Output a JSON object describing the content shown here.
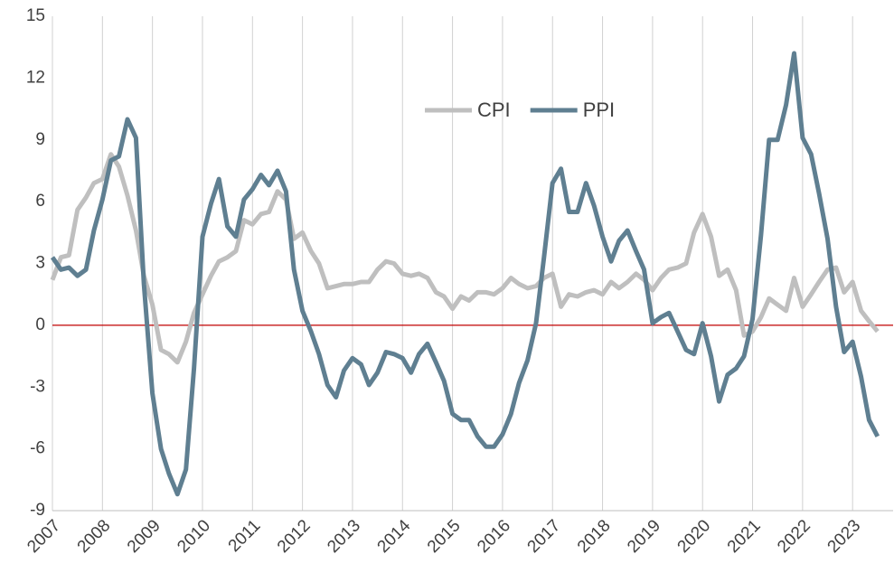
{
  "chart_data": {
    "type": "line",
    "x": [
      2007,
      2007.17,
      2007.33,
      2007.5,
      2007.67,
      2007.83,
      2008,
      2008.17,
      2008.33,
      2008.5,
      2008.67,
      2008.83,
      2009,
      2009.17,
      2009.33,
      2009.5,
      2009.67,
      2009.83,
      2010,
      2010.17,
      2010.33,
      2010.5,
      2010.67,
      2010.83,
      2011,
      2011.17,
      2011.33,
      2011.5,
      2011.67,
      2011.83,
      2012,
      2012.17,
      2012.33,
      2012.5,
      2012.67,
      2012.83,
      2013,
      2013.17,
      2013.33,
      2013.5,
      2013.67,
      2013.83,
      2014,
      2014.17,
      2014.33,
      2014.5,
      2014.67,
      2014.83,
      2015,
      2015.17,
      2015.33,
      2015.5,
      2015.67,
      2015.83,
      2016,
      2016.17,
      2016.33,
      2016.5,
      2016.67,
      2016.83,
      2017,
      2017.17,
      2017.33,
      2017.5,
      2017.67,
      2017.83,
      2018,
      2018.17,
      2018.33,
      2018.5,
      2018.67,
      2018.83,
      2019,
      2019.17,
      2019.33,
      2019.5,
      2019.67,
      2019.83,
      2020,
      2020.17,
      2020.33,
      2020.5,
      2020.67,
      2020.83,
      2021,
      2021.17,
      2021.33,
      2021.5,
      2021.67,
      2021.83,
      2022,
      2022.17,
      2022.33,
      2022.5,
      2022.67,
      2022.83,
      2023,
      2023.17,
      2023.33,
      2023.5
    ],
    "series": [
      {
        "name": "CPI",
        "color": "#bfbfbf",
        "values": [
          2.2,
          3.3,
          3.4,
          5.6,
          6.2,
          6.9,
          7.1,
          8.3,
          7.7,
          6.3,
          4.6,
          2.4,
          1.0,
          -1.2,
          -1.4,
          -1.8,
          -0.8,
          0.6,
          1.5,
          2.4,
          3.1,
          3.3,
          3.6,
          5.1,
          4.9,
          5.4,
          5.5,
          6.5,
          6.1,
          4.2,
          4.5,
          3.6,
          3.0,
          1.8,
          1.9,
          2.0,
          2.0,
          2.1,
          2.1,
          2.7,
          3.1,
          3.0,
          2.5,
          2.4,
          2.5,
          2.3,
          1.6,
          1.4,
          0.8,
          1.4,
          1.2,
          1.6,
          1.6,
          1.5,
          1.8,
          2.3,
          2.0,
          1.8,
          1.9,
          2.3,
          2.5,
          0.9,
          1.5,
          1.4,
          1.6,
          1.7,
          1.5,
          2.1,
          1.8,
          2.1,
          2.5,
          2.2,
          1.7,
          2.3,
          2.7,
          2.8,
          3.0,
          4.5,
          5.4,
          4.3,
          2.4,
          2.7,
          1.7,
          -0.5,
          -0.3,
          0.4,
          1.3,
          1.0,
          0.7,
          2.3,
          0.9,
          1.5,
          2.1,
          2.7,
          2.8,
          1.6,
          2.1,
          0.7,
          0.2,
          -0.3
        ]
      },
      {
        "name": "PPI",
        "color": "#5f7f91",
        "values": [
          3.3,
          2.7,
          2.8,
          2.4,
          2.7,
          4.6,
          6.1,
          8.0,
          8.2,
          10.0,
          9.1,
          2.0,
          -3.3,
          -6.0,
          -7.2,
          -8.2,
          -7.0,
          -2.1,
          4.3,
          5.9,
          7.1,
          4.8,
          4.3,
          6.1,
          6.6,
          7.3,
          6.8,
          7.5,
          6.5,
          2.7,
          0.7,
          -0.3,
          -1.4,
          -2.9,
          -3.5,
          -2.2,
          -1.6,
          -1.9,
          -2.9,
          -2.3,
          -1.3,
          -1.4,
          -1.6,
          -2.3,
          -1.4,
          -0.9,
          -1.8,
          -2.7,
          -4.3,
          -4.6,
          -4.6,
          -5.4,
          -5.9,
          -5.9,
          -5.3,
          -4.3,
          -2.8,
          -1.7,
          0.1,
          3.3,
          6.9,
          7.6,
          5.5,
          5.5,
          6.9,
          5.8,
          4.3,
          3.1,
          4.1,
          4.6,
          3.6,
          2.7,
          0.1,
          0.4,
          0.6,
          -0.3,
          -1.2,
          -1.4,
          0.1,
          -1.5,
          -3.7,
          -2.4,
          -2.1,
          -1.5,
          0.3,
          4.4,
          9.0,
          9.0,
          10.7,
          13.2,
          9.1,
          8.3,
          6.4,
          4.2,
          0.9,
          -1.3,
          -0.8,
          -2.5,
          -4.6,
          -5.4
        ]
      }
    ],
    "xlim": [
      2007,
      2023.81
    ],
    "xticks": [
      2007,
      2008,
      2009,
      2010,
      2011,
      2012,
      2013,
      2014,
      2015,
      2016,
      2017,
      2018,
      2019,
      2020,
      2021,
      2022,
      2023
    ],
    "ylim": [
      -9,
      15
    ],
    "yticks": [
      -9,
      -6,
      -3,
      0,
      3,
      6,
      9,
      12,
      15
    ],
    "grid": true,
    "legend": "top"
  }
}
